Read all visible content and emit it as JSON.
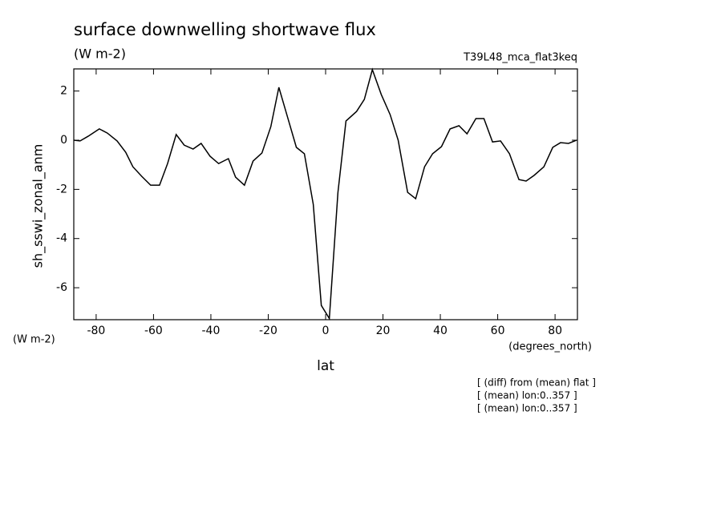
{
  "chart_data": {
    "type": "line",
    "title": "surface downwelling shortwave flux",
    "subtitle": "(W m-2)",
    "run_label": "T39L48_mca_flat3keq",
    "y_label": "sh_sswi_zonal_anm",
    "y_units": "(W m-2)",
    "x_label": "lat",
    "x_units": "(degrees_north)",
    "notes": [
      "[ (diff) from (mean) flat ]",
      "[ (mean) lon:0..357 ]",
      "[ (mean) lon:0..357 ]"
    ],
    "x": [
      -87.8,
      -85.6,
      -82.8,
      -78.9,
      -76.1,
      -72.7,
      -69.7,
      -67.2,
      -64.1,
      -61.0,
      -57.9,
      -55.1,
      -52.1,
      -49.3,
      -46.2,
      -43.4,
      -40.3,
      -37.3,
      -33.9,
      -31.4,
      -28.3,
      -25.3,
      -22.2,
      -19.1,
      -16.3,
      -13.3,
      -10.2,
      -7.4,
      -4.3,
      -1.5,
      1.3,
      4.3,
      7.1,
      10.8,
      13.5,
      16.3,
      19.4,
      22.5,
      25.3,
      28.6,
      31.4,
      34.5,
      37.3,
      40.4,
      43.4,
      46.5,
      49.3,
      52.4,
      55.2,
      58.2,
      61.0,
      64.1,
      67.4,
      69.9,
      72.7,
      76.1,
      79.2,
      81.9,
      84.7,
      87.5
    ],
    "series": [
      {
        "color": "#000000",
        "values": [
          0,
          -0.03,
          0.16,
          0.46,
          0.29,
          -0.03,
          -0.49,
          -1.08,
          -1.47,
          -1.83,
          -1.83,
          -0.95,
          0.23,
          -0.2,
          -0.36,
          -0.13,
          -0.65,
          -0.95,
          -0.75,
          -1.5,
          -1.83,
          -0.85,
          -0.52,
          0.55,
          2.15,
          0.95,
          -0.29,
          -0.55,
          -2.61,
          -6.72,
          -7.25,
          -2.12,
          0.78,
          1.17,
          1.66,
          2.87,
          1.86,
          1.04,
          0,
          -2.12,
          -2.38,
          -1.08,
          -0.55,
          -0.26,
          0.46,
          0.59,
          0.26,
          0.88,
          0.88,
          -0.07,
          -0.03,
          -0.55,
          -1.6,
          -1.66,
          -1.43,
          -1.08,
          -0.29,
          -0.1,
          -0.13,
          0
        ]
      }
    ],
    "xlim": [
      -87.8,
      87.8
    ],
    "xticks": [
      -80,
      -60,
      -40,
      -20,
      0,
      20,
      40,
      60,
      80
    ],
    "ylim": [
      -7.3,
      2.9
    ],
    "yticks": [
      -6,
      -4,
      -2,
      0,
      2
    ]
  }
}
